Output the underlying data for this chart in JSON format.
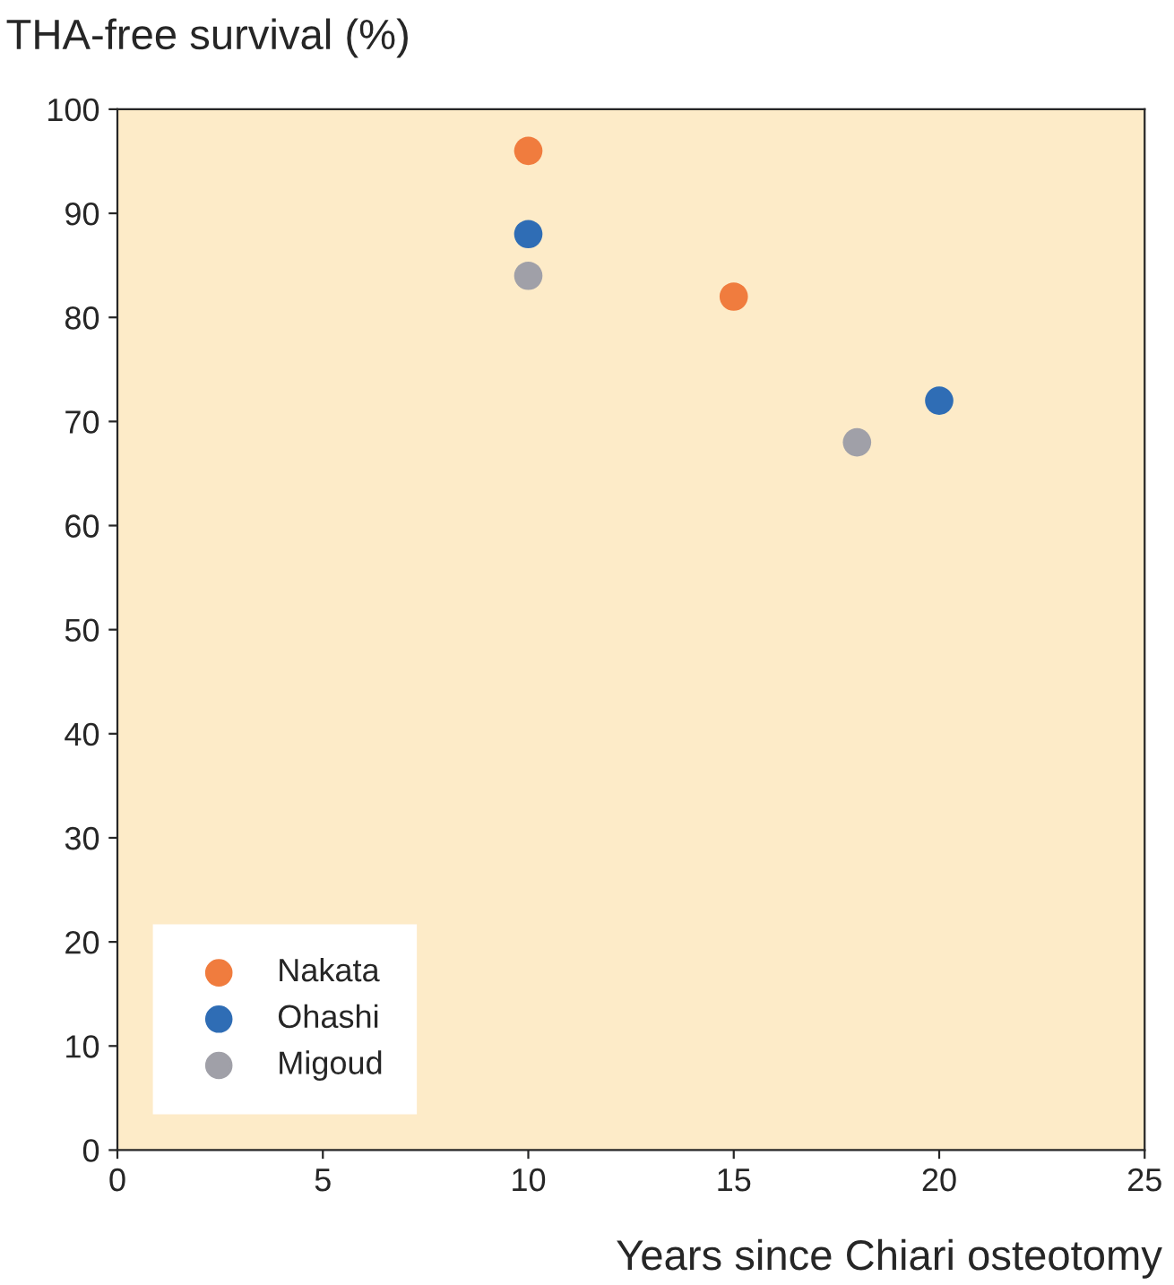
{
  "chart_data": {
    "type": "scatter",
    "xlabel": "Years since Chiari osteotomy",
    "ylabel": "THA-free survival (%)",
    "series": [
      {
        "name": "Nakata",
        "color": "#f07c3e",
        "x": [
          10,
          15
        ],
        "values": [
          96,
          82
        ]
      },
      {
        "name": "Ohashi",
        "color": "#2f6db5",
        "x": [
          10,
          20
        ],
        "values": [
          88,
          72
        ]
      },
      {
        "name": "Migoud",
        "color": "#a0a0a8",
        "x": [
          10,
          18
        ],
        "values": [
          84,
          68
        ]
      }
    ],
    "xlim": [
      0,
      25
    ],
    "xticks": [
      0,
      5,
      10,
      15,
      20,
      25
    ],
    "ylim": [
      0,
      100
    ],
    "yticks": [
      0,
      10,
      20,
      30,
      40,
      50,
      60,
      70,
      80,
      90,
      100
    ],
    "grid": false,
    "legend": "bottom left",
    "marker": "circle"
  }
}
